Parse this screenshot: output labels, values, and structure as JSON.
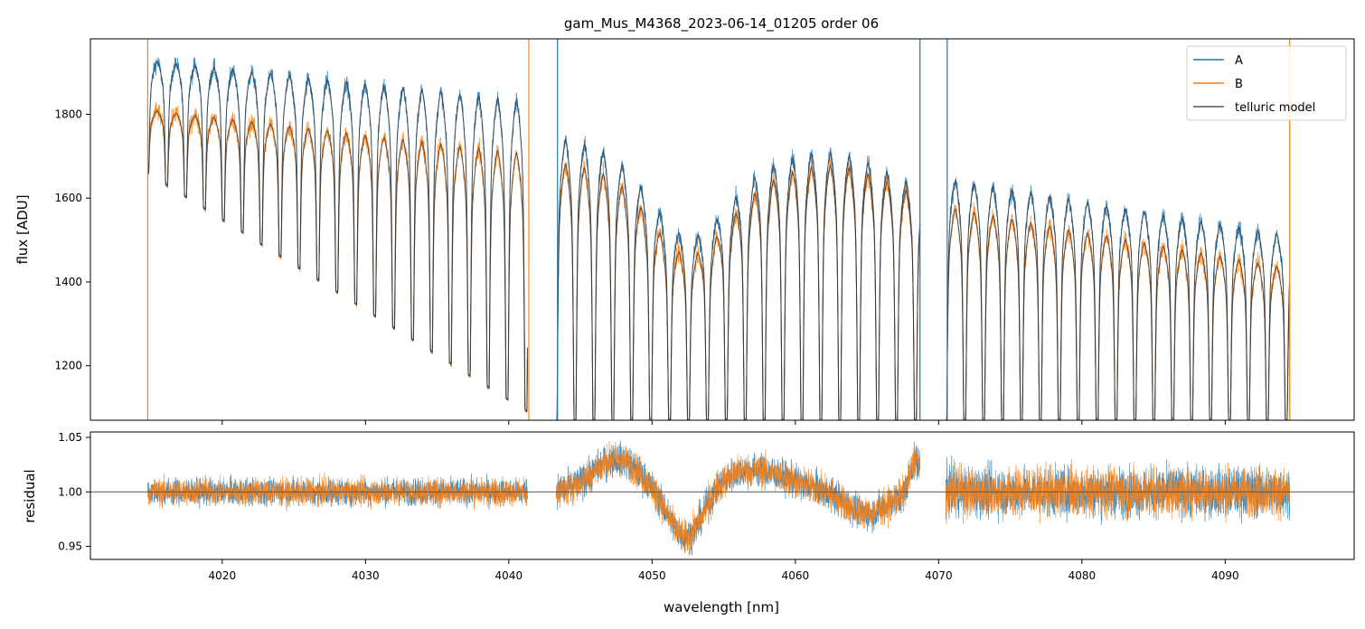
{
  "chart_data": [
    {
      "type": "line",
      "title": "gam_Mus_M4368_2023-06-14_01205  order 06",
      "xlabel": "",
      "ylabel": "flux [ADU]",
      "xlim": [
        4010.8,
        4099.0
      ],
      "ylim": [
        1070,
        1980
      ],
      "xticks": [
        4020,
        4030,
        4040,
        4050,
        4060,
        4070,
        4080,
        4090
      ],
      "yticks": [
        1200,
        1400,
        1600,
        1800
      ],
      "ytick_labels": [
        "1200",
        "1400",
        "1600",
        "1800"
      ],
      "legend": {
        "position": "top-right",
        "entries": [
          {
            "label": "A",
            "color": "#1f77b4"
          },
          {
            "label": "B",
            "color": "#ff7f0e"
          },
          {
            "label": "telluric model",
            "color": "#555555"
          }
        ]
      },
      "segments": [
        {
          "x": [
            4014.8,
            4041.3
          ],
          "continuum_A": [
            1935,
            1850
          ],
          "continuum_B": [
            1815,
            1720
          ],
          "line_floor_start": 1660,
          "line_floor_end": 1090,
          "line_spacing": 1.32
        },
        {
          "x": [
            4043.3,
            4068.7
          ],
          "continuum_A": [
            1760,
            1620
          ],
          "continuum_B": [
            1700,
            1600
          ],
          "line_floor": 1070,
          "line_spacing": 1.32
        },
        {
          "x": [
            4070.5,
            4094.5
          ],
          "continuum_A": [
            1660,
            1520
          ],
          "continuum_B": [
            1590,
            1440
          ],
          "line_floor": 1070,
          "line_spacing": 1.32
        }
      ],
      "series": [
        {
          "name": "A",
          "color": "#1f77b4"
        },
        {
          "name": "B",
          "color": "#ff7f0e"
        },
        {
          "name": "telluric model",
          "color": "#333333"
        }
      ],
      "vertical_spikes": [
        {
          "x": 4014.8,
          "color": "#ff7f0e"
        },
        {
          "x": 4041.4,
          "color": "#ff7f0e"
        },
        {
          "x": 4043.4,
          "color": "#1f77b4"
        },
        {
          "x": 4068.7,
          "color": "#1f77b4"
        },
        {
          "x": 4070.6,
          "color": "#1f77b4"
        },
        {
          "x": 4094.5,
          "color": "#ff7f0e"
        }
      ]
    },
    {
      "type": "line",
      "title": "",
      "xlabel": "wavelength [nm]",
      "ylabel": "residual",
      "xlim": [
        4010.8,
        4099.0
      ],
      "ylim": [
        0.938,
        1.055
      ],
      "xticks": [
        4020,
        4030,
        4040,
        4050,
        4060,
        4070,
        4080,
        4090
      ],
      "xtick_labels": [
        "4020",
        "4030",
        "4040",
        "4050",
        "4060",
        "4070",
        "4080",
        "4090"
      ],
      "yticks": [
        0.95,
        1.0,
        1.05
      ],
      "ytick_labels": [
        "0.95",
        "1.00",
        "1.05"
      ],
      "reference_line": 1.0,
      "noise_sigma": [
        0.012,
        0.015,
        0.022
      ],
      "series": [
        {
          "name": "A",
          "color": "#1f77b4"
        },
        {
          "name": "B",
          "color": "#ff7f0e"
        }
      ]
    }
  ]
}
